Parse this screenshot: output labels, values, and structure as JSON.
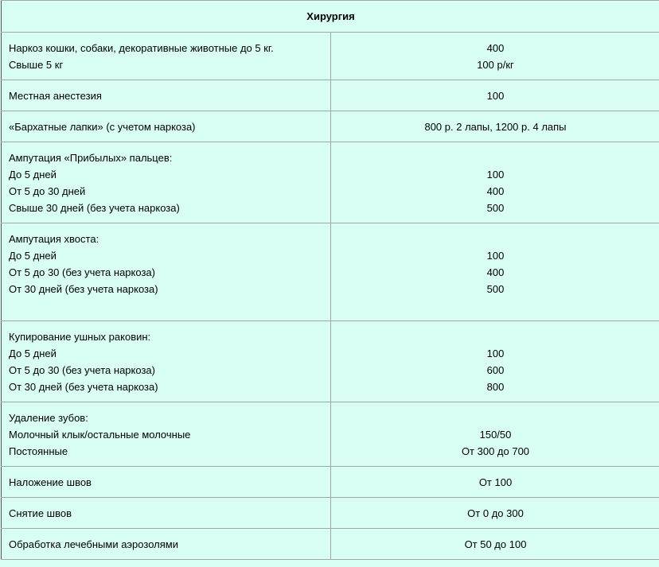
{
  "title": "Хирургия",
  "rows": [
    {
      "left": [
        "Наркоз кошки, собаки, декоративные животные до 5 кг.",
        "Свыше 5 кг"
      ],
      "right": [
        "400",
        "100 р/кг"
      ]
    },
    {
      "left": [
        "Местная анестезия"
      ],
      "right": [
        "100"
      ]
    },
    {
      "left": [
        "«Бархатные лапки» (с учетом наркоза)"
      ],
      "right": [
        "800 р. 2 лапы, 1200 р. 4 лапы"
      ]
    },
    {
      "left": [
        "Ампутация  «Прибылых» пальцев:",
        "До 5 дней",
        "От 5 до 30 дней",
        "Свыше 30 дней (без учета наркоза)"
      ],
      "right": [
        "",
        "100",
        "400",
        "500"
      ]
    },
    {
      "left": [
        "Ампутация хвоста:",
        "До 5 дней",
        "От 5 до 30 (без учета наркоза)",
        "От 30 дней (без учета наркоза)"
      ],
      "right": [
        "",
        "100",
        "400",
        "500"
      ]
    },
    {
      "left": [
        "Купирование ушных раковин:",
        "До 5 дней",
        "От 5 до 30 (без учета наркоза)",
        "От 30 дней (без учета наркоза)"
      ],
      "right": [
        "",
        "100",
        "600",
        "800"
      ]
    },
    {
      "left": [
        "Удаление зубов:",
        "Молочный клык/остальные молочные",
        "Постоянные"
      ],
      "right": [
        "",
        "150/50",
        "От 300 до 700"
      ]
    },
    {
      "left": [
        "Наложение швов"
      ],
      "right": [
        "От 100"
      ]
    },
    {
      "left": [
        "Снятие швов"
      ],
      "right": [
        "От 0 до 300"
      ]
    },
    {
      "left": [
        "Обработка лечебными аэрозолями"
      ],
      "right": [
        "От 50 до 100"
      ]
    }
  ]
}
